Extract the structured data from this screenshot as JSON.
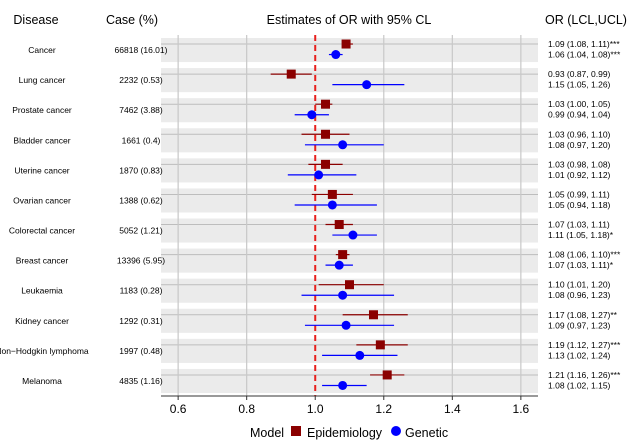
{
  "chart_data": {
    "type": "forest",
    "title": "Estimates of OR with 95% CL",
    "left_headers": {
      "disease": "Disease",
      "case": "Case (%)"
    },
    "right_header": "OR (LCL,UCL)",
    "xlim": [
      0.55,
      1.65
    ],
    "xticks": [
      0.6,
      0.8,
      1.0,
      1.2,
      1.4,
      1.6
    ],
    "xtick_labels": [
      "0.6",
      "0.8",
      "1.0",
      "1.2",
      "1.4",
      "1.6"
    ],
    "reference_line": 1.0,
    "legend": {
      "title": "Model",
      "position": "bottom",
      "items": [
        {
          "label": "Epidemiology",
          "color": "#8b0000",
          "shape": "square"
        },
        {
          "label": "Genetic",
          "color": "#0000ff",
          "shape": "circle"
        }
      ]
    },
    "rows": [
      {
        "disease": "Cancer",
        "case": "66818 (16.01)",
        "epi": {
          "or": 1.09,
          "lcl": 1.08,
          "ucl": 1.11,
          "label": "1.09 (1.08, 1.11)***"
        },
        "gen": {
          "or": 1.06,
          "lcl": 1.04,
          "ucl": 1.08,
          "label": "1.06 (1.04, 1.08)***"
        }
      },
      {
        "disease": "Lung cancer",
        "case": "2232 (0.53)",
        "epi": {
          "or": 0.93,
          "lcl": 0.87,
          "ucl": 0.99,
          "label": "0.93 (0.87, 0.99)"
        },
        "gen": {
          "or": 1.15,
          "lcl": 1.05,
          "ucl": 1.26,
          "label": "1.15 (1.05, 1.26)"
        }
      },
      {
        "disease": "Prostate cancer",
        "case": "7462 (3.88)",
        "epi": {
          "or": 1.03,
          "lcl": 1.0,
          "ucl": 1.05,
          "label": "1.03 (1.00, 1.05)"
        },
        "gen": {
          "or": 0.99,
          "lcl": 0.94,
          "ucl": 1.04,
          "label": "0.99 (0.94, 1.04)"
        }
      },
      {
        "disease": "Bladder cancer",
        "case": "1661 (0.4)",
        "epi": {
          "or": 1.03,
          "lcl": 0.96,
          "ucl": 1.1,
          "label": "1.03 (0.96, 1.10)"
        },
        "gen": {
          "or": 1.08,
          "lcl": 0.97,
          "ucl": 1.2,
          "label": "1.08 (0.97, 1.20)"
        }
      },
      {
        "disease": "Uterine cancer",
        "case": "1870 (0.83)",
        "epi": {
          "or": 1.03,
          "lcl": 0.98,
          "ucl": 1.08,
          "label": "1.03 (0.98, 1.08)"
        },
        "gen": {
          "or": 1.01,
          "lcl": 0.92,
          "ucl": 1.12,
          "label": "1.01 (0.92, 1.12)"
        }
      },
      {
        "disease": "Ovarian cancer",
        "case": "1388 (0.62)",
        "epi": {
          "or": 1.05,
          "lcl": 0.99,
          "ucl": 1.11,
          "label": "1.05 (0.99, 1.11)"
        },
        "gen": {
          "or": 1.05,
          "lcl": 0.94,
          "ucl": 1.18,
          "label": "1.05 (0.94, 1.18)"
        }
      },
      {
        "disease": "Colorectal cancer",
        "case": "5052 (1.21)",
        "epi": {
          "or": 1.07,
          "lcl": 1.03,
          "ucl": 1.11,
          "label": "1.07 (1.03, 1.11)"
        },
        "gen": {
          "or": 1.11,
          "lcl": 1.05,
          "ucl": 1.18,
          "label": "1.11 (1.05, 1.18)*"
        }
      },
      {
        "disease": "Breast cancer",
        "case": "13396 (5.95)",
        "epi": {
          "or": 1.08,
          "lcl": 1.06,
          "ucl": 1.1,
          "label": "1.08 (1.06, 1.10)***"
        },
        "gen": {
          "or": 1.07,
          "lcl": 1.03,
          "ucl": 1.11,
          "label": "1.07 (1.03, 1.11)*"
        }
      },
      {
        "disease": "Leukaemia",
        "case": "1183 (0.28)",
        "epi": {
          "or": 1.1,
          "lcl": 1.01,
          "ucl": 1.2,
          "label": "1.10 (1.01, 1.20)"
        },
        "gen": {
          "or": 1.08,
          "lcl": 0.96,
          "ucl": 1.23,
          "label": "1.08 (0.96, 1.23)"
        }
      },
      {
        "disease": "Kidney cancer",
        "case": "1292 (0.31)",
        "epi": {
          "or": 1.17,
          "lcl": 1.08,
          "ucl": 1.27,
          "label": "1.17 (1.08, 1.27)**"
        },
        "gen": {
          "or": 1.09,
          "lcl": 0.97,
          "ucl": 1.23,
          "label": "1.09 (0.97, 1.23)"
        }
      },
      {
        "disease": "Non−Hodgkin lymphoma",
        "case": "1997 (0.48)",
        "epi": {
          "or": 1.19,
          "lcl": 1.12,
          "ucl": 1.27,
          "label": "1.19 (1.12, 1.27)***"
        },
        "gen": {
          "or": 1.13,
          "lcl": 1.02,
          "ucl": 1.24,
          "label": "1.13 (1.02, 1.24)"
        }
      },
      {
        "disease": "Melanoma",
        "case": "4835 (1.16)",
        "epi": {
          "or": 1.21,
          "lcl": 1.16,
          "ucl": 1.26,
          "label": "1.21 (1.16, 1.26)***"
        },
        "gen": {
          "or": 1.08,
          "lcl": 1.02,
          "ucl": 1.15,
          "label": "1.08 (1.02, 1.15)"
        }
      }
    ]
  }
}
